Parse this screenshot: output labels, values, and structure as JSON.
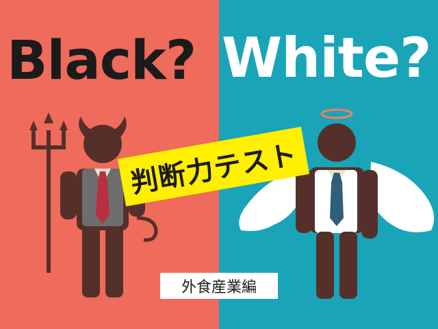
{
  "colors": {
    "left_background": "#ef6b5b",
    "right_background": "#1aa4b8",
    "figure_dark": "#55302a",
    "banner_yellow": "#ffef00"
  },
  "headline": {
    "left": "Black?",
    "right": "White?"
  },
  "banner": {
    "text": "判断力テスト"
  },
  "subtitle": {
    "text": "外食産業編"
  },
  "icons": [
    "devil-figure-icon",
    "angel-figure-icon",
    "trident-icon",
    "halo-icon",
    "wings-icon",
    "necktie-icon"
  ]
}
